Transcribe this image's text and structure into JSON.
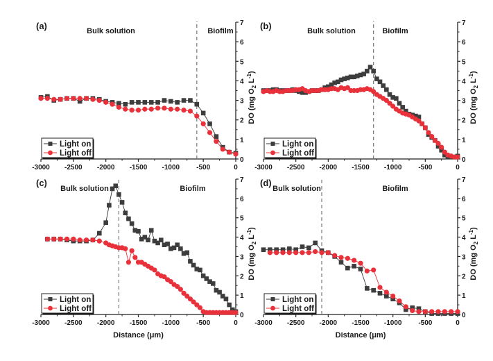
{
  "chart_data": [
    {
      "panel": "(a)",
      "type": "line",
      "xlabel": "",
      "ylabel": "DO (mg O2 L-1)",
      "xlim": [
        -3000,
        0
      ],
      "ylim": [
        0,
        7
      ],
      "xticks": [
        -3000,
        -2500,
        -2000,
        -1500,
        -1000,
        -500,
        0
      ],
      "yticks": [
        0,
        1,
        2,
        3,
        4,
        5,
        6,
        7
      ],
      "boundary_x": -600,
      "regions": [
        "Bulk solution",
        "Biofilm"
      ],
      "legend": {
        "position": "bottom-left",
        "entries": [
          "Light on",
          "Light off"
        ]
      },
      "x_axis_title_shown": false,
      "y_axis_title_shown": true,
      "series": [
        {
          "name": "Light on",
          "marker": "square",
          "color": "#3d3d3d",
          "x": [
            -3000,
            -2900,
            -2800,
            -2700,
            -2600,
            -2500,
            -2400,
            -2300,
            -2200,
            -2100,
            -2000,
            -1900,
            -1800,
            -1700,
            -1600,
            -1500,
            -1400,
            -1300,
            -1200,
            -1100,
            -1000,
            -900,
            -800,
            -700,
            -600,
            -500,
            -400,
            -300,
            -200,
            -100,
            0
          ],
          "y": [
            3.15,
            3.2,
            3.0,
            3.05,
            3.1,
            3.1,
            2.95,
            3.1,
            3.1,
            3.05,
            2.95,
            2.9,
            2.85,
            2.8,
            2.9,
            2.9,
            2.9,
            2.9,
            2.9,
            3.0,
            2.95,
            2.9,
            3.0,
            3.0,
            2.8,
            2.35,
            1.8,
            1.15,
            0.6,
            0.35,
            0.3
          ]
        },
        {
          "name": "Light off",
          "marker": "circle",
          "color": "#e8313a",
          "x": [
            -3000,
            -2900,
            -2800,
            -2700,
            -2600,
            -2500,
            -2400,
            -2300,
            -2200,
            -2100,
            -2000,
            -1900,
            -1800,
            -1700,
            -1600,
            -1500,
            -1400,
            -1300,
            -1200,
            -1100,
            -1000,
            -900,
            -800,
            -700,
            -600,
            -500,
            -400,
            -300,
            -200,
            -100,
            0
          ],
          "y": [
            3.1,
            3.1,
            3.05,
            3.05,
            3.1,
            3.1,
            3.1,
            3.1,
            3.05,
            3.0,
            2.9,
            2.8,
            2.65,
            2.55,
            2.5,
            2.5,
            2.55,
            2.55,
            2.6,
            2.6,
            2.55,
            2.55,
            2.5,
            2.45,
            2.2,
            1.8,
            1.35,
            0.9,
            0.5,
            0.35,
            0.25
          ]
        }
      ]
    },
    {
      "panel": "(b)",
      "type": "line",
      "xlabel": "",
      "ylabel": "DO (mg O2 L-1)",
      "xlim": [
        -3000,
        0
      ],
      "ylim": [
        0,
        7
      ],
      "xticks": [
        -3000,
        -2500,
        -2000,
        -1500,
        -1000,
        -500,
        0
      ],
      "yticks": [
        0,
        1,
        2,
        3,
        4,
        5,
        6,
        7
      ],
      "boundary_x": -1300,
      "regions": [
        "Bulk solution",
        "Biofilm"
      ],
      "legend": {
        "position": "bottom-left",
        "entries": [
          "Light on",
          "Light off"
        ]
      },
      "x_axis_title_shown": false,
      "y_axis_title_shown": true,
      "series": [
        {
          "name": "Light on",
          "marker": "square",
          "color": "#3d3d3d",
          "x": [
            -3000,
            -2950,
            -2900,
            -2850,
            -2800,
            -2750,
            -2700,
            -2650,
            -2600,
            -2550,
            -2500,
            -2450,
            -2400,
            -2350,
            -2300,
            -2250,
            -2200,
            -2150,
            -2100,
            -2050,
            -2000,
            -1950,
            -1900,
            -1850,
            -1800,
            -1750,
            -1700,
            -1650,
            -1600,
            -1550,
            -1500,
            -1450,
            -1400,
            -1350,
            -1300,
            -1250,
            -1200,
            -1150,
            -1100,
            -1050,
            -1000,
            -950,
            -900,
            -850,
            -800,
            -750,
            -700,
            -650,
            -600,
            -550,
            -500,
            -450,
            -400,
            -350,
            -300,
            -250,
            -200,
            -150,
            -100,
            -50,
            0
          ],
          "y": [
            3.5,
            3.5,
            3.5,
            3.55,
            3.55,
            3.5,
            3.5,
            3.5,
            3.5,
            3.55,
            3.5,
            3.45,
            3.4,
            3.4,
            3.45,
            3.5,
            3.5,
            3.5,
            3.55,
            3.65,
            3.7,
            3.8,
            3.9,
            3.95,
            4.05,
            4.1,
            4.15,
            4.2,
            4.2,
            4.25,
            4.3,
            4.35,
            4.5,
            4.7,
            4.5,
            4.1,
            3.95,
            3.75,
            3.55,
            3.3,
            3.15,
            3.1,
            2.85,
            2.65,
            2.45,
            2.3,
            2.25,
            2.2,
            2.15,
            1.8,
            1.6,
            1.25,
            1.1,
            0.95,
            0.65,
            0.45,
            0.2,
            0.1,
            0.1,
            0.1,
            0.15
          ]
        },
        {
          "name": "Light off",
          "marker": "circle",
          "color": "#e8313a",
          "x": [
            -3000,
            -2950,
            -2900,
            -2850,
            -2800,
            -2750,
            -2700,
            -2650,
            -2600,
            -2550,
            -2500,
            -2450,
            -2400,
            -2350,
            -2300,
            -2250,
            -2200,
            -2150,
            -2100,
            -2050,
            -2000,
            -1950,
            -1900,
            -1850,
            -1800,
            -1750,
            -1700,
            -1650,
            -1600,
            -1550,
            -1500,
            -1450,
            -1400,
            -1350,
            -1300,
            -1250,
            -1200,
            -1150,
            -1100,
            -1050,
            -1000,
            -950,
            -900,
            -850,
            -800,
            -750,
            -700,
            -650,
            -600,
            -550,
            -500,
            -450,
            -400,
            -350,
            -300,
            -250,
            -200,
            -150,
            -100,
            -50,
            0
          ],
          "y": [
            3.45,
            3.5,
            3.45,
            3.45,
            3.5,
            3.45,
            3.45,
            3.5,
            3.5,
            3.5,
            3.55,
            3.55,
            3.6,
            3.5,
            3.45,
            3.5,
            3.5,
            3.5,
            3.55,
            3.55,
            3.55,
            3.6,
            3.6,
            3.55,
            3.65,
            3.6,
            3.65,
            3.5,
            3.5,
            3.5,
            3.55,
            3.55,
            3.6,
            3.55,
            3.45,
            3.3,
            3.2,
            3.1,
            3.0,
            2.85,
            2.7,
            2.55,
            2.45,
            2.35,
            2.3,
            2.25,
            2.15,
            2.05,
            1.95,
            1.8,
            1.6,
            1.35,
            1.15,
            0.95,
            0.8,
            0.6,
            0.35,
            0.2,
            0.15,
            0.1,
            0.1
          ]
        }
      ]
    },
    {
      "panel": "(c)",
      "type": "line",
      "xlabel": "Distance (μm)",
      "ylabel": "DO (mg O2 L-1)",
      "xlim": [
        -3000,
        0
      ],
      "ylim": [
        0,
        7
      ],
      "xticks": [
        -3000,
        -2500,
        -2000,
        -1500,
        -1000,
        -500,
        0
      ],
      "yticks": [
        0,
        1,
        2,
        3,
        4,
        5,
        6,
        7
      ],
      "boundary_x": -1800,
      "regions": [
        "Bulk solution",
        "Biofilm"
      ],
      "legend": {
        "position": "bottom-left",
        "entries": [
          "Light on",
          "Light off"
        ]
      },
      "x_axis_title_shown": true,
      "y_axis_title_shown": true,
      "series": [
        {
          "name": "Light on",
          "marker": "square",
          "color": "#3d3d3d",
          "x": [
            -2900,
            -2800,
            -2700,
            -2600,
            -2500,
            -2400,
            -2300,
            -2200,
            -2100,
            -2000,
            -1950,
            -1900,
            -1850,
            -1800,
            -1750,
            -1700,
            -1650,
            -1600,
            -1550,
            -1500,
            -1450,
            -1400,
            -1350,
            -1300,
            -1250,
            -1200,
            -1150,
            -1100,
            -1050,
            -1000,
            -950,
            -900,
            -850,
            -800,
            -750,
            -700,
            -650,
            -600,
            -550,
            -500,
            -450,
            -400,
            -350,
            -300,
            -250,
            -200,
            -150,
            -100,
            -50,
            0
          ],
          "y": [
            3.9,
            3.9,
            3.9,
            3.85,
            3.8,
            3.8,
            3.8,
            3.85,
            4.2,
            4.75,
            5.65,
            6.5,
            6.65,
            6.2,
            5.8,
            5.25,
            4.95,
            4.7,
            4.35,
            4.3,
            3.9,
            4.0,
            3.85,
            4.35,
            3.8,
            3.7,
            3.85,
            3.6,
            3.65,
            3.4,
            3.45,
            3.6,
            3.4,
            3.15,
            3.2,
            2.75,
            2.55,
            2.35,
            2.3,
            2.0,
            1.85,
            1.7,
            1.6,
            1.25,
            1.15,
            0.95,
            0.8,
            0.5,
            0.25,
            0.15
          ]
        },
        {
          "name": "Light off",
          "marker": "circle",
          "color": "#e8313a",
          "x": [
            -2900,
            -2800,
            -2700,
            -2600,
            -2500,
            -2400,
            -2300,
            -2200,
            -2100,
            -2000,
            -1950,
            -1900,
            -1850,
            -1800,
            -1750,
            -1700,
            -1650,
            -1600,
            -1550,
            -1500,
            -1450,
            -1400,
            -1350,
            -1300,
            -1250,
            -1200,
            -1150,
            -1100,
            -1050,
            -1000,
            -950,
            -900,
            -850,
            -800,
            -750,
            -700,
            -650,
            -600,
            -550,
            -500,
            -450,
            -400,
            -350,
            -300,
            -250,
            -200,
            -150,
            -100,
            -50,
            0
          ],
          "y": [
            3.9,
            3.9,
            3.9,
            3.9,
            3.9,
            3.85,
            3.85,
            3.85,
            3.8,
            3.7,
            3.6,
            3.55,
            3.5,
            3.45,
            3.45,
            3.4,
            2.7,
            3.3,
            2.95,
            2.7,
            2.7,
            2.6,
            2.5,
            2.4,
            2.3,
            2.1,
            2.0,
            1.95,
            1.8,
            1.7,
            1.55,
            1.45,
            1.3,
            1.1,
            0.95,
            0.8,
            0.65,
            0.5,
            0.35,
            0.15,
            0.1,
            0.1,
            0.1,
            0.1,
            0.1,
            0.1,
            0.1,
            0.1,
            0.1,
            0.1
          ]
        }
      ]
    },
    {
      "panel": "(d)",
      "type": "line",
      "xlabel": "Distance (μm)",
      "ylabel": "DO (mg O2 L-1)",
      "xlim": [
        -3000,
        0
      ],
      "ylim": [
        0,
        7
      ],
      "xticks": [
        -3000,
        -2500,
        -2000,
        -1500,
        -1000,
        -500,
        0
      ],
      "yticks": [
        0,
        1,
        2,
        3,
        4,
        5,
        6,
        7
      ],
      "boundary_x": -2100,
      "regions": [
        "Bulk solution",
        "Biofilm"
      ],
      "legend": {
        "position": "bottom-left",
        "entries": [
          "Light on",
          "Light off"
        ]
      },
      "x_axis_title_shown": true,
      "y_axis_title_shown": true,
      "series": [
        {
          "name": "Light on",
          "marker": "square",
          "color": "#3d3d3d",
          "x": [
            -3000,
            -2900,
            -2800,
            -2700,
            -2600,
            -2500,
            -2400,
            -2300,
            -2200,
            -2100,
            -2000,
            -1900,
            -1800,
            -1700,
            -1600,
            -1500,
            -1400,
            -1300,
            -1200,
            -1100,
            -1000,
            -900,
            -800,
            -700,
            -600,
            -500,
            -400,
            -300,
            -200,
            -100,
            0
          ],
          "y": [
            3.35,
            3.35,
            3.35,
            3.35,
            3.4,
            3.35,
            3.5,
            3.45,
            3.7,
            3.3,
            3.2,
            3.0,
            2.7,
            2.4,
            2.5,
            2.35,
            1.35,
            1.25,
            1.1,
            0.95,
            0.8,
            0.6,
            0.25,
            0.35,
            0.3,
            0.15,
            0.05,
            0.05,
            0.05,
            0.05,
            0.05
          ]
        },
        {
          "name": "Light off",
          "marker": "circle",
          "color": "#e8313a",
          "x": [
            -2900,
            -2800,
            -2700,
            -2600,
            -2500,
            -2400,
            -2300,
            -2200,
            -2100,
            -2000,
            -1900,
            -1800,
            -1700,
            -1600,
            -1500,
            -1400,
            -1300,
            -1200,
            -1100,
            -1000,
            -900,
            -800,
            -700,
            -600,
            -500,
            -400,
            -300,
            -200,
            -100,
            0
          ],
          "y": [
            3.2,
            3.2,
            3.2,
            3.2,
            3.2,
            3.2,
            3.2,
            3.25,
            3.2,
            3.2,
            3.05,
            2.95,
            2.9,
            2.8,
            2.65,
            2.25,
            2.3,
            1.4,
            1.15,
            0.95,
            0.7,
            0.4,
            0.2,
            0.15,
            0.15,
            0.15,
            0.15,
            0.15,
            0.15,
            0.15
          ]
        }
      ]
    }
  ]
}
